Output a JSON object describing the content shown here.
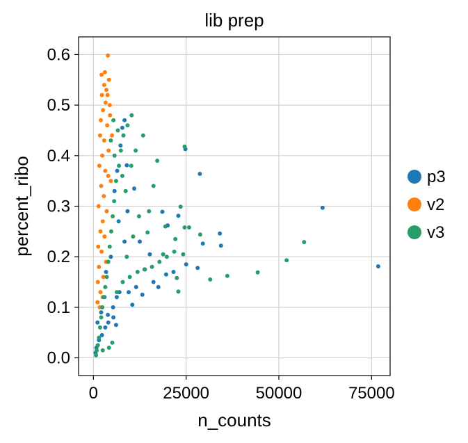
{
  "chart_data": {
    "type": "scatter",
    "title": "lib prep",
    "xlabel": "n_counts",
    "ylabel": "percent_ribo",
    "xlim": [
      -4000,
      80000
    ],
    "ylim": [
      -0.035,
      0.635
    ],
    "xticks": [
      0,
      25000,
      50000,
      75000
    ],
    "xtick_labels": [
      "0",
      "25000",
      "50000",
      "75000"
    ],
    "yticks": [
      0.0,
      0.1,
      0.2,
      0.3,
      0.4,
      0.5,
      0.6
    ],
    "ytick_labels": [
      "0.0",
      "0.1",
      "0.2",
      "0.3",
      "0.4",
      "0.5",
      "0.6"
    ],
    "grid": true,
    "legend_position": "right",
    "series": [
      {
        "name": "p3",
        "color": "#1f77b4",
        "points": [
          [
            61800,
            0.297
          ],
          [
            76800,
            0.181
          ],
          [
            28700,
            0.364
          ],
          [
            34100,
            0.246
          ],
          [
            34400,
            0.222
          ],
          [
            29500,
            0.226
          ],
          [
            24800,
            0.413
          ],
          [
            25000,
            0.185
          ],
          [
            28100,
            0.178
          ],
          [
            22900,
            0.281
          ],
          [
            20000,
            0.262
          ],
          [
            18600,
            0.289
          ],
          [
            11000,
            0.335
          ],
          [
            9000,
            0.381
          ],
          [
            7800,
            0.455
          ],
          [
            8400,
            0.47
          ],
          [
            12500,
            0.23
          ],
          [
            15200,
            0.205
          ],
          [
            13800,
            0.175
          ],
          [
            9500,
            0.13
          ],
          [
            6300,
            0.12
          ],
          [
            5300,
            0.1
          ],
          [
            3900,
            0.085
          ],
          [
            3200,
            0.06
          ],
          [
            2300,
            0.045
          ],
          [
            1500,
            0.035
          ],
          [
            800,
            0.02
          ],
          [
            600,
            0.01
          ],
          [
            1100,
            0.07
          ],
          [
            2100,
            0.09
          ],
          [
            3000,
            0.12
          ],
          [
            4000,
            0.07
          ],
          [
            5400,
            0.08
          ],
          [
            6100,
            0.065
          ],
          [
            7000,
            0.13
          ],
          [
            11500,
            0.14
          ],
          [
            16200,
            0.15
          ],
          [
            19600,
            0.165
          ],
          [
            21600,
            0.17
          ],
          [
            10500,
            0.105
          ],
          [
            13200,
            0.125
          ],
          [
            17500,
            0.14
          ],
          [
            8400,
            0.23
          ],
          [
            6800,
            0.27
          ],
          [
            5700,
            0.33
          ],
          [
            7300,
            0.42
          ],
          [
            6400,
            0.37
          ],
          [
            9200,
            0.29
          ],
          [
            4700,
            0.2
          ],
          [
            3400,
            0.17
          ]
        ]
      },
      {
        "name": "v2",
        "color": "#ff7f0e",
        "points": [
          [
            3900,
            0.598
          ],
          [
            3100,
            0.565
          ],
          [
            2900,
            0.54
          ],
          [
            3500,
            0.53
          ],
          [
            4200,
            0.55
          ],
          [
            2300,
            0.52
          ],
          [
            3300,
            0.505
          ],
          [
            2600,
            0.49
          ],
          [
            4500,
            0.48
          ],
          [
            2000,
            0.47
          ],
          [
            3700,
            0.46
          ],
          [
            1800,
            0.44
          ],
          [
            2900,
            0.43
          ],
          [
            4100,
            0.41
          ],
          [
            2400,
            0.4
          ],
          [
            1600,
            0.38
          ],
          [
            3200,
            0.37
          ],
          [
            4700,
            0.35
          ],
          [
            2100,
            0.34
          ],
          [
            2800,
            0.32
          ],
          [
            1400,
            0.3
          ],
          [
            3600,
            0.29
          ],
          [
            2500,
            0.27
          ],
          [
            1900,
            0.25
          ],
          [
            3000,
            0.24
          ],
          [
            1300,
            0.22
          ],
          [
            2200,
            0.21
          ],
          [
            3400,
            0.19
          ],
          [
            1500,
            0.18
          ],
          [
            2700,
            0.16
          ],
          [
            1200,
            0.15
          ],
          [
            1900,
            0.13
          ],
          [
            2500,
            0.12
          ],
          [
            1100,
            0.11
          ],
          [
            1700,
            0.1
          ],
          [
            4000,
            0.36
          ],
          [
            5000,
            0.44
          ],
          [
            4400,
            0.5
          ],
          [
            3800,
            0.52
          ],
          [
            2200,
            0.56
          ]
        ]
      },
      {
        "name": "v3",
        "color": "#279e68",
        "points": [
          [
            24600,
            0.418
          ],
          [
            56800,
            0.229
          ],
          [
            52100,
            0.193
          ],
          [
            44300,
            0.169
          ],
          [
            36100,
            0.162
          ],
          [
            31500,
            0.155
          ],
          [
            28800,
            0.244
          ],
          [
            25800,
            0.258
          ],
          [
            24600,
            0.258
          ],
          [
            23500,
            0.299
          ],
          [
            19400,
            0.26
          ],
          [
            22100,
            0.235
          ],
          [
            24200,
            0.205
          ],
          [
            22500,
            0.158
          ],
          [
            22900,
            0.131
          ],
          [
            17200,
            0.39
          ],
          [
            16200,
            0.34
          ],
          [
            15000,
            0.29
          ],
          [
            14600,
            0.248
          ],
          [
            18800,
            0.205
          ],
          [
            13400,
            0.44
          ],
          [
            11400,
            0.41
          ],
          [
            10300,
            0.48
          ],
          [
            9200,
            0.46
          ],
          [
            8100,
            0.44
          ],
          [
            7400,
            0.41
          ],
          [
            6900,
            0.38
          ],
          [
            6100,
            0.35
          ],
          [
            5600,
            0.31
          ],
          [
            5200,
            0.28
          ],
          [
            4800,
            0.25
          ],
          [
            4400,
            0.22
          ],
          [
            4000,
            0.19
          ],
          [
            3600,
            0.16
          ],
          [
            3200,
            0.14
          ],
          [
            2800,
            0.12
          ],
          [
            2400,
            0.1
          ],
          [
            2100,
            0.08
          ],
          [
            1800,
            0.06
          ],
          [
            1500,
            0.04
          ],
          [
            1200,
            0.025
          ],
          [
            900,
            0.015
          ],
          [
            700,
            0.005
          ],
          [
            2500,
            0.015
          ],
          [
            4200,
            0.02
          ],
          [
            5100,
            0.03
          ],
          [
            6300,
            0.13
          ],
          [
            7900,
            0.15
          ],
          [
            9800,
            0.16
          ],
          [
            11900,
            0.17
          ],
          [
            13900,
            0.175
          ],
          [
            15800,
            0.18
          ],
          [
            17800,
            0.19
          ],
          [
            19800,
            0.2
          ],
          [
            21800,
            0.21
          ],
          [
            9000,
            0.2
          ],
          [
            10700,
            0.24
          ],
          [
            12300,
            0.28
          ],
          [
            8700,
            0.33
          ],
          [
            6600,
            0.45
          ],
          [
            7800,
            0.36
          ],
          [
            10200,
            0.38
          ],
          [
            5700,
            0.4
          ],
          [
            4700,
            0.43
          ],
          [
            5400,
            0.47
          ]
        ]
      }
    ]
  }
}
